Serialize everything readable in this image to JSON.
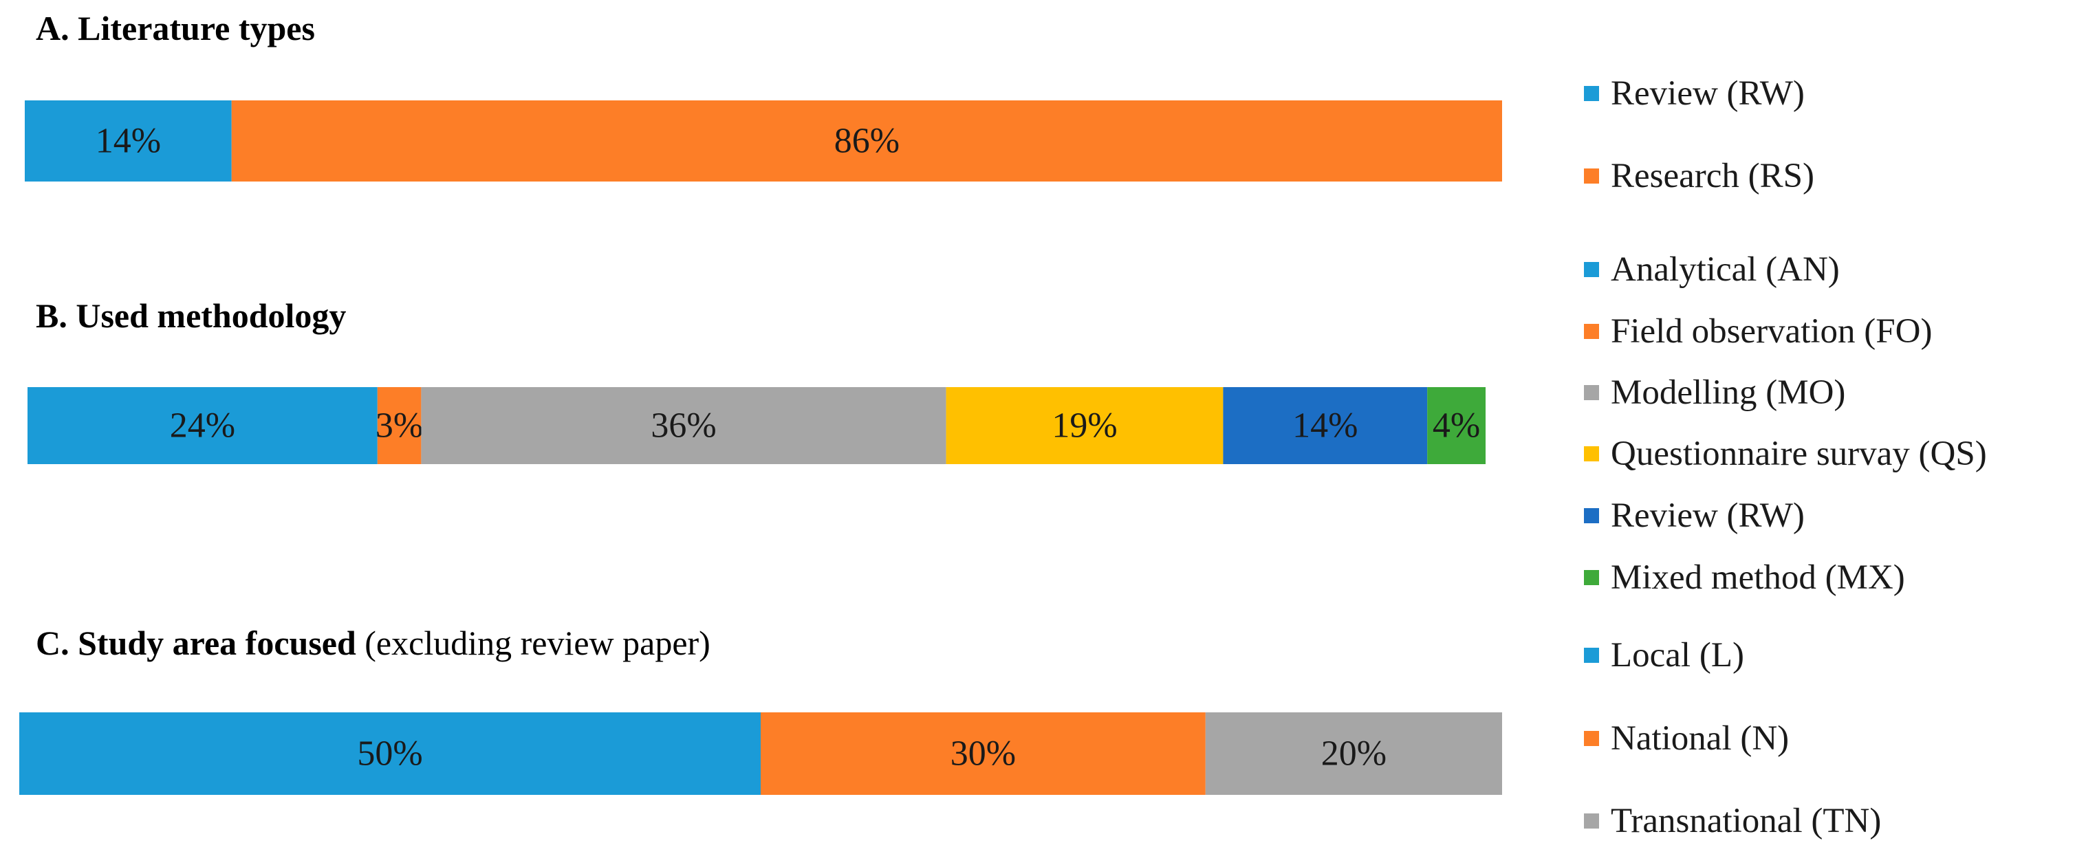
{
  "chart_data": [
    {
      "type": "bar",
      "orientation": "horizontal-stacked-100",
      "title": "A. Literature types",
      "title_suffix": "",
      "segments": [
        {
          "name": "Review (RW)",
          "value": 14,
          "label": "14%",
          "color": "#1b9bd7"
        },
        {
          "name": "Research (RS)",
          "value": 86,
          "label": "86%",
          "color": "#fd7e27"
        }
      ]
    },
    {
      "type": "bar",
      "orientation": "horizontal-stacked-100",
      "title": "B. Used methodology",
      "title_suffix": "",
      "segments": [
        {
          "name": "Analytical (AN)",
          "value": 24,
          "label": "24%",
          "color": "#1b9bd7"
        },
        {
          "name": "Field observation (FO)",
          "value": 3,
          "label": "3%",
          "color": "#fd7e27"
        },
        {
          "name": "Modelling (MO)",
          "value": 36,
          "label": "36%",
          "color": "#a6a6a6"
        },
        {
          "name": "Questionnaire survay (QS)",
          "value": 19,
          "label": "19%",
          "color": "#ffc000"
        },
        {
          "name": "Review (RW)",
          "value": 14,
          "label": "14%",
          "color": "#1c6ec4"
        },
        {
          "name": "Mixed method (MX)",
          "value": 4,
          "label": "4%",
          "color": "#3eaa3a"
        }
      ]
    },
    {
      "type": "bar",
      "orientation": "horizontal-stacked-100",
      "title": "C. Study area focused",
      "title_suffix": " (excluding review paper)",
      "segments": [
        {
          "name": "Local (L)",
          "value": 50,
          "label": "50%",
          "color": "#1b9bd7"
        },
        {
          "name": "National (N)",
          "value": 30,
          "label": "30%",
          "color": "#fd7e27"
        },
        {
          "name": "Transnational (TN)",
          "value": 20,
          "label": "20%",
          "color": "#a6a6a6"
        }
      ]
    }
  ]
}
